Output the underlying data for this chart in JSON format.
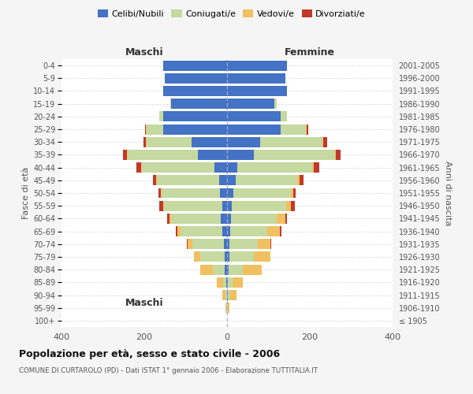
{
  "age_groups": [
    "100+",
    "95-99",
    "90-94",
    "85-89",
    "80-84",
    "75-79",
    "70-74",
    "65-69",
    "60-64",
    "55-59",
    "50-54",
    "45-49",
    "40-44",
    "35-39",
    "30-34",
    "25-29",
    "20-24",
    "15-19",
    "10-14",
    "5-9",
    "0-4"
  ],
  "birth_years": [
    "≤ 1905",
    "1906-1910",
    "1911-1915",
    "1916-1920",
    "1921-1925",
    "1926-1930",
    "1931-1935",
    "1936-1940",
    "1941-1945",
    "1946-1950",
    "1951-1955",
    "1956-1960",
    "1961-1965",
    "1966-1970",
    "1971-1975",
    "1976-1980",
    "1981-1985",
    "1986-1990",
    "1991-1995",
    "1996-2000",
    "2001-2005"
  ],
  "male": {
    "celibi": [
      0,
      0,
      0,
      2,
      5,
      5,
      8,
      12,
      15,
      12,
      18,
      20,
      30,
      70,
      85,
      155,
      155,
      135,
      155,
      150,
      155
    ],
    "coniugati": [
      0,
      1,
      3,
      8,
      30,
      60,
      75,
      100,
      120,
      140,
      140,
      150,
      175,
      170,
      110,
      40,
      8,
      2,
      0,
      0,
      0
    ],
    "vedovi": [
      0,
      2,
      8,
      15,
      30,
      15,
      12,
      8,
      5,
      3,
      2,
      2,
      2,
      2,
      2,
      2,
      0,
      0,
      0,
      0,
      0
    ],
    "divorziati": [
      0,
      0,
      0,
      0,
      0,
      0,
      2,
      3,
      5,
      8,
      5,
      8,
      12,
      10,
      5,
      2,
      0,
      0,
      0,
      0,
      0
    ]
  },
  "female": {
    "nubili": [
      0,
      0,
      2,
      2,
      3,
      5,
      5,
      8,
      10,
      12,
      15,
      20,
      25,
      65,
      80,
      130,
      130,
      115,
      145,
      140,
      145
    ],
    "coniugate": [
      0,
      2,
      5,
      12,
      35,
      60,
      70,
      90,
      110,
      130,
      140,
      150,
      180,
      195,
      150,
      60,
      15,
      5,
      0,
      0,
      0
    ],
    "vedove": [
      0,
      3,
      15,
      25,
      45,
      40,
      30,
      30,
      20,
      12,
      5,
      5,
      5,
      3,
      3,
      3,
      0,
      0,
      0,
      0,
      0
    ],
    "divorziate": [
      0,
      0,
      0,
      0,
      0,
      0,
      2,
      3,
      5,
      10,
      5,
      10,
      12,
      12,
      8,
      3,
      0,
      0,
      0,
      0,
      0
    ]
  },
  "color_celibi": "#4472c4",
  "color_coniugati": "#c5d9a0",
  "color_vedovi": "#f0c060",
  "color_divorziati": "#c0392b",
  "title": "Popolazione per età, sesso e stato civile - 2006",
  "subtitle": "COMUNE DI CURTAROLO (PD) - Dati ISTAT 1° gennaio 2006 - Elaborazione TUTTITALIA.IT",
  "xlabel_left": "Maschi",
  "xlabel_right": "Femmine",
  "ylabel_left": "Fasce di età",
  "ylabel_right": "Anni di nascita",
  "xlim": 400,
  "bg_color": "#f5f5f5",
  "plot_bg": "#ffffff"
}
